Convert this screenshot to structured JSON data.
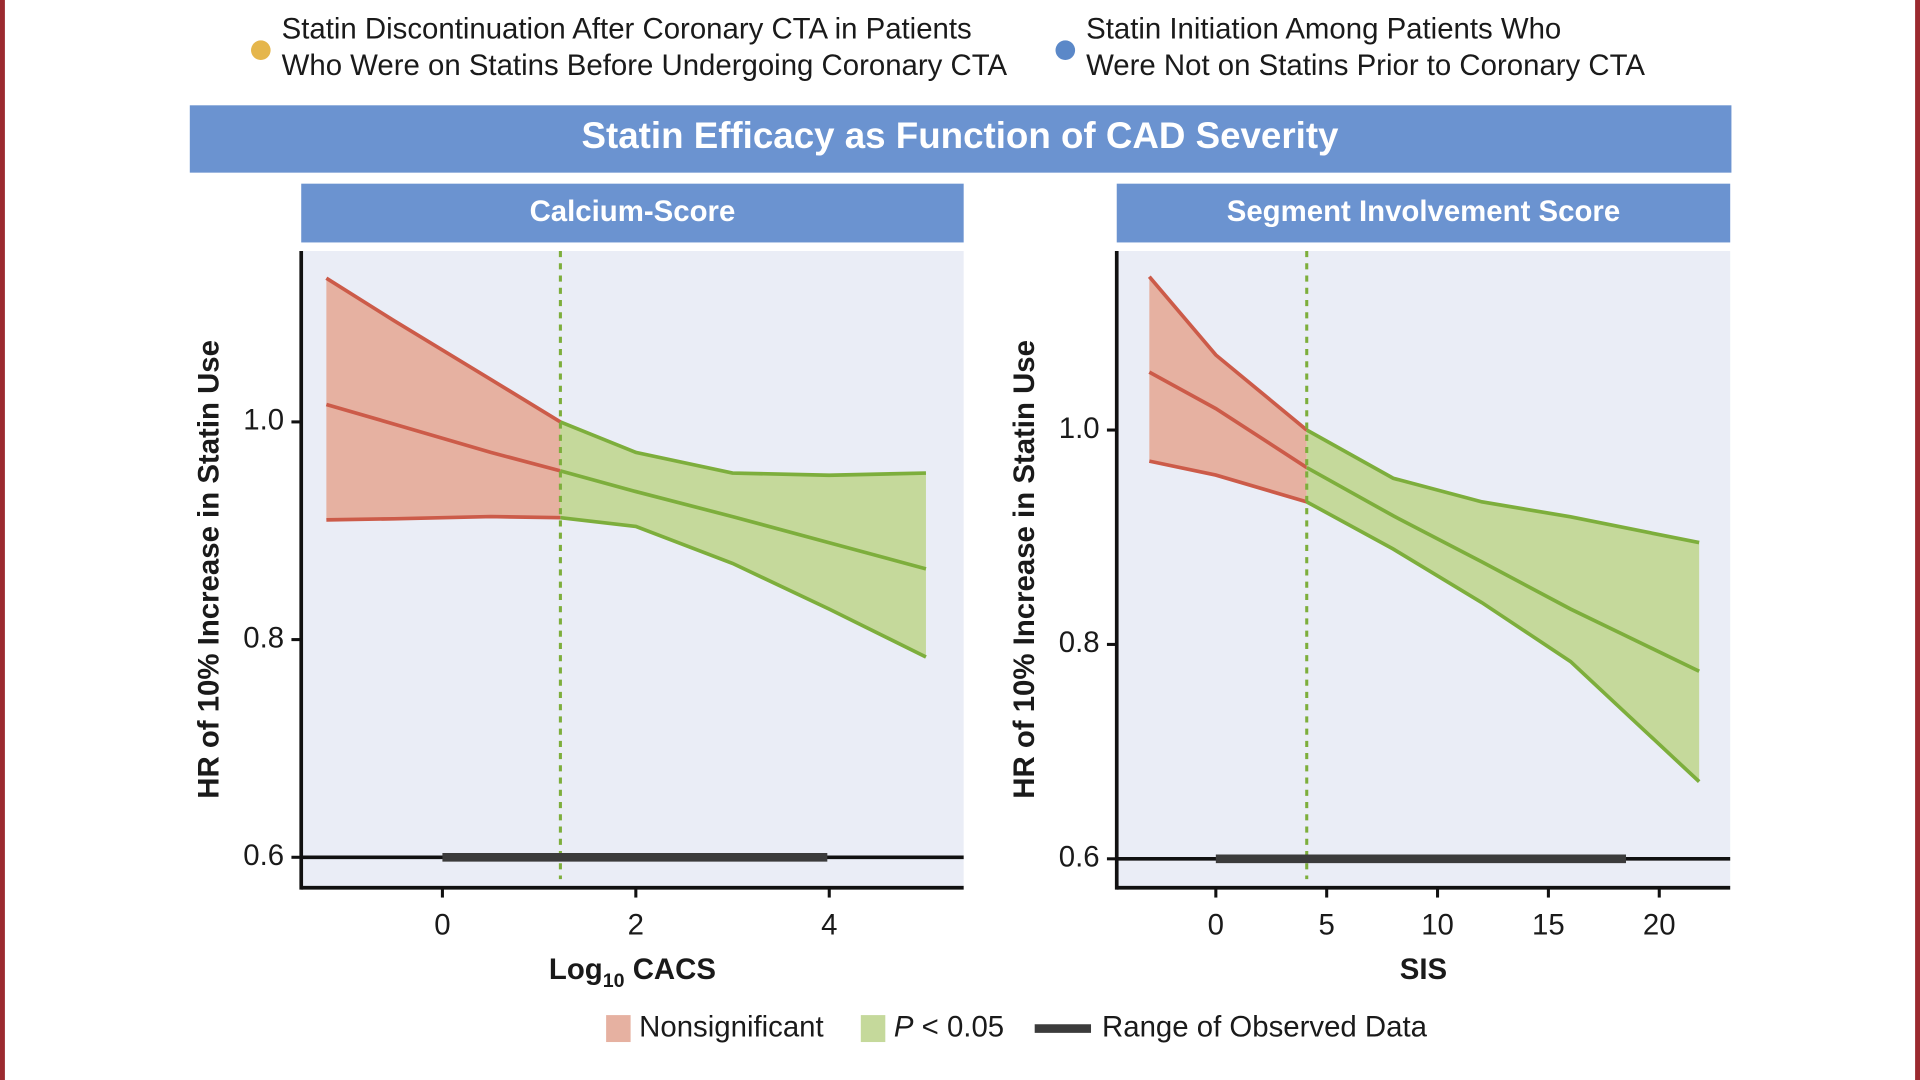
{
  "top_legend": [
    {
      "color": "#e5b64c",
      "lines": [
        "Statin Discontinuation After Coronary CTA in Patients",
        "Who Were on Statins Before Undergoing Coronary CTA"
      ]
    },
    {
      "color": "#5b88c8",
      "lines": [
        "Statin Initiation Among Patients Who",
        "Were Not on Statins Prior to Coronary CTA"
      ]
    }
  ],
  "title": "Statin Efficacy as Function of CAD Severity",
  "legend": [
    {
      "parts": [
        {
          "text": "Nonsignificant"
        }
      ],
      "fill": "#e6b1a1",
      "line": "#cc5b49"
    },
    {
      "parts": [
        {
          "text": "P",
          "italic": true
        },
        {
          "text": " < 0.05"
        }
      ],
      "fill": "#c5d99b",
      "line": "#7dae3c"
    },
    {
      "parts": [
        {
          "text": "Range of Observed Data"
        }
      ],
      "line": "#3b3b3b"
    }
  ],
  "chart_data": [
    {
      "type": "line",
      "title": "Calcium-Score",
      "x_label": [
        {
          "text": "Log"
        },
        {
          "text": "10",
          "sub": true
        },
        {
          "text": " CACS"
        }
      ],
      "y_label": "HR of 10% Increase in Statin Use",
      "x": [
        -1.2,
        -0.5,
        0,
        0.5,
        1.22,
        2,
        3,
        4,
        5
      ],
      "estimate": [
        1.016,
        0.998,
        0.985,
        0.972,
        0.955,
        0.936,
        0.913,
        0.889,
        0.865
      ],
      "upper": [
        1.132,
        1.093,
        1.066,
        1.039,
        1.0,
        0.972,
        0.953,
        0.951,
        0.953
      ],
      "lower": [
        0.91,
        0.911,
        0.912,
        0.913,
        0.912,
        0.904,
        0.87,
        0.828,
        0.784
      ],
      "threshold": 1.22,
      "observed_range": [
        0,
        3.98
      ],
      "xlim": [
        -1.46,
        5.39
      ],
      "ylim": [
        0.572,
        1.157
      ],
      "xticks": [
        0,
        2,
        4
      ],
      "yticks": [
        0.6,
        0.8,
        {
          "value": 1,
          "label": "1.0"
        }
      ]
    },
    {
      "type": "line",
      "title": "Segment Involvement Score",
      "x_label": [
        {
          "text": "SIS"
        }
      ],
      "y_label": "HR of 10% Increase in Statin Use",
      "x": [
        -3,
        0,
        4.1,
        8,
        12,
        16,
        21.8
      ],
      "estimate": [
        1.054,
        1.02,
        0.965,
        0.92,
        0.877,
        0.833,
        0.775
      ],
      "upper": [
        1.143,
        1.07,
        1.0,
        0.955,
        0.933,
        0.919,
        0.895
      ],
      "lower": [
        0.971,
        0.958,
        0.933,
        0.889,
        0.839,
        0.784,
        0.672
      ],
      "threshold": 4.1,
      "observed_range": [
        0,
        18.5
      ],
      "xlim": [
        -4.47,
        23.2
      ],
      "ylim": [
        0.573,
        1.167
      ],
      "xticks": [
        0,
        5,
        10,
        15,
        20
      ],
      "yticks": [
        0.6,
        0.8,
        {
          "value": 1,
          "label": "1.0"
        }
      ]
    }
  ]
}
